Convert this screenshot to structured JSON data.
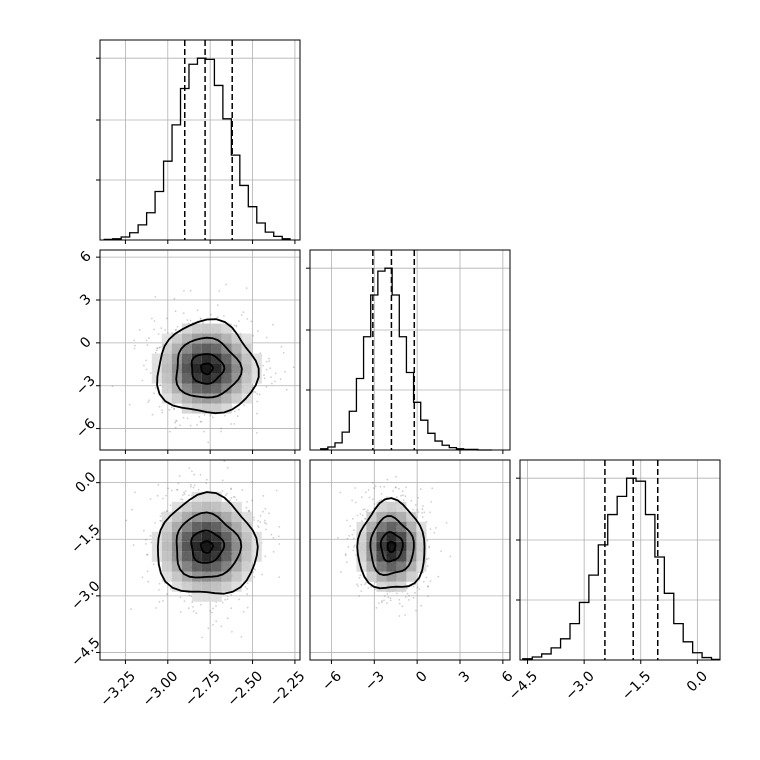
{
  "chart_data": {
    "type": "corner",
    "parameters": [
      {
        "label": "",
        "range": [
          -3.4,
          -2.22
        ],
        "ticks": [
          -3.25,
          -3.0,
          -2.75,
          -2.5,
          -2.25
        ],
        "tick_labels": [
          "−3.25",
          "−3.00",
          "−2.75",
          "−2.50",
          "−2.25"
        ],
        "quantiles": [
          -2.9,
          -2.78,
          -2.62
        ],
        "mean": -2.77,
        "sd": 0.15
      },
      {
        "label": "",
        "range": [
          -7.5,
          6.5
        ],
        "ticks": [
          -6,
          -3,
          0,
          3,
          6
        ],
        "tick_labels": [
          "−6",
          "−3",
          "0",
          "3",
          "6"
        ],
        "quantiles": [
          -3.1,
          -1.8,
          -0.2
        ],
        "mean": -1.8,
        "sd": 1.5
      },
      {
        "label": "",
        "range": [
          -4.7,
          0.6
        ],
        "ticks": [
          -4.5,
          -3.0,
          -1.5,
          0.0
        ],
        "tick_labels": [
          "−4.5",
          "−3.0",
          "−1.5",
          "0.0"
        ],
        "quantiles": [
          -2.45,
          -1.7,
          -1.05
        ],
        "mean": -1.7,
        "sd": 0.65
      }
    ],
    "histograms": [
      {
        "x": [
          -3.35,
          -3.3,
          -3.25,
          -3.2,
          -3.15,
          -3.1,
          -3.05,
          -3.0,
          -2.95,
          -2.9,
          -2.85,
          -2.8,
          -2.75,
          -2.7,
          -2.65,
          -2.6,
          -2.55,
          -2.5,
          -2.45,
          -2.4,
          -2.35,
          -2.3
        ],
        "counts": [
          1,
          2,
          5,
          12,
          25,
          45,
          80,
          130,
          190,
          250,
          290,
          300,
          298,
          255,
          200,
          140,
          90,
          55,
          28,
          13,
          6,
          2
        ]
      },
      {
        "x": [
          -6.5,
          -6.0,
          -5.5,
          -5.0,
          -4.5,
          -4.0,
          -3.5,
          -3.0,
          -2.5,
          -2.0,
          -1.5,
          -1.0,
          -0.5,
          0.0,
          0.5,
          1.0,
          1.5,
          2.0,
          2.5,
          3.0,
          3.5,
          4.0,
          4.5,
          5.0
        ],
        "counts": [
          2,
          5,
          12,
          30,
          65,
          120,
          190,
          260,
          300,
          305,
          260,
          190,
          130,
          80,
          50,
          28,
          15,
          8,
          4,
          2,
          1,
          1,
          0,
          0
        ]
      },
      {
        "x": [
          -4.5,
          -4.25,
          -4.0,
          -3.75,
          -3.5,
          -3.25,
          -3.0,
          -2.75,
          -2.5,
          -2.25,
          -2.0,
          -1.75,
          -1.5,
          -1.25,
          -1.0,
          -0.75,
          -0.5,
          -0.25,
          0.0,
          0.25,
          0.5
        ],
        "counts": [
          2,
          5,
          10,
          20,
          35,
          60,
          95,
          140,
          190,
          240,
          270,
          300,
          295,
          240,
          170,
          110,
          60,
          30,
          12,
          4,
          1
        ]
      }
    ],
    "pairs": [
      {
        "row": 1,
        "col": 0,
        "center": [
          -2.77,
          -1.8
        ],
        "scatter_spread": [
          0.2,
          2.2
        ]
      },
      {
        "row": 2,
        "col": 0,
        "center": [
          -2.77,
          -1.7
        ],
        "scatter_spread": [
          0.2,
          0.9
        ]
      },
      {
        "row": 2,
        "col": 1,
        "center": [
          -1.8,
          -1.7
        ],
        "scatter_spread": [
          1.6,
          0.8
        ]
      }
    ],
    "grid": true
  }
}
